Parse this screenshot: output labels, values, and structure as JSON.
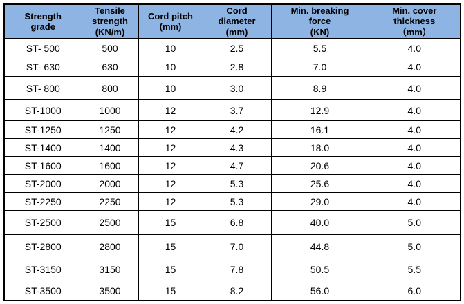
{
  "colors": {
    "header_background": "#8DB4E2",
    "border": "#000000",
    "text": "#000000",
    "row_background": "#FFFFFF"
  },
  "table": {
    "headers": [
      {
        "label": "Strength\ngrade"
      },
      {
        "label": "Tensile\nstrength\n(KN/m)"
      },
      {
        "label": "Cord pitch\n(mm)"
      },
      {
        "label": "Cord\ndiameter\n(mm)"
      },
      {
        "label": "Min. breaking\nforce\n(KN)"
      },
      {
        "label": "Min. cover\nthickness\n（mm）"
      }
    ],
    "rows": [
      [
        "ST- 500",
        "500",
        "10",
        "2.5",
        "5.5",
        "4.0"
      ],
      [
        "ST- 630",
        "630",
        "10",
        "2.8",
        "7.0",
        "4.0"
      ],
      [
        "ST- 800",
        "800",
        "10",
        "3.0",
        "8.9",
        "4.0"
      ],
      [
        "ST-1000",
        "1000",
        "12",
        "3.7",
        "12.9",
        "4.0"
      ],
      [
        "ST-1250",
        "1250",
        "12",
        "4.2",
        "16.1",
        "4.0"
      ],
      [
        "ST-1400",
        "1400",
        "12",
        "4.3",
        "18.0",
        "4.0"
      ],
      [
        "ST-1600",
        "1600",
        "12",
        "4.7",
        "20.6",
        "4.0"
      ],
      [
        "ST-2000",
        "2000",
        "12",
        "5.3",
        "25.6",
        "4.0"
      ],
      [
        "ST-2250",
        "2250",
        "12",
        "5.3",
        "29.0",
        "4.0"
      ],
      [
        "ST-2500",
        "2500",
        "15",
        "6.8",
        "40.0",
        "5.0"
      ],
      [
        "ST-2800",
        "2800",
        "15",
        "7.0",
        "44.8",
        "5.0"
      ],
      [
        "ST-3150",
        "3150",
        "15",
        "7.8",
        "50.5",
        "5.5"
      ],
      [
        "ST-3500",
        "3500",
        "15",
        "8.2",
        "56.0",
        "6.0"
      ]
    ]
  }
}
